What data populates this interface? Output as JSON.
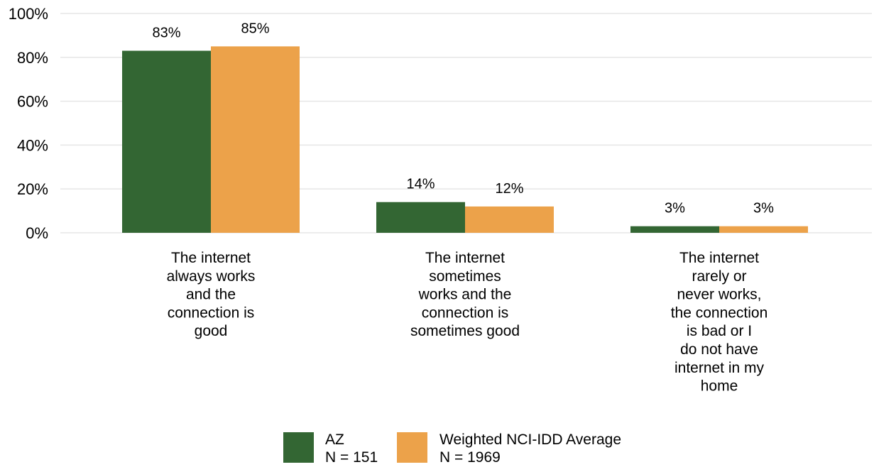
{
  "chart_data": {
    "type": "bar",
    "title": "",
    "xlabel": "",
    "ylabel": "",
    "ylim": [
      0,
      100
    ],
    "yticks": [
      "0%",
      "20%",
      "40%",
      "60%",
      "80%",
      "100%"
    ],
    "ytick_values": [
      0,
      20,
      40,
      60,
      80,
      100
    ],
    "grid": true,
    "legend_position": "bottom",
    "categories": [
      [
        "The internet",
        "always works",
        "and the",
        "connection is",
        "good"
      ],
      [
        "The internet",
        "sometimes",
        "works and the",
        "connection is",
        "sometimes good"
      ],
      [
        "The internet",
        "rarely or",
        "never works,",
        "the connection",
        "is bad or I",
        "do not have",
        "internet in my",
        "home"
      ]
    ],
    "series": [
      {
        "name": "AZ",
        "n_label": "N = 151",
        "color": "#336633",
        "values": [
          83,
          14,
          3
        ],
        "labels": [
          "83%",
          "14%",
          "3%"
        ]
      },
      {
        "name": "Weighted NCI-IDD Average",
        "n_label": "N = 1969",
        "color": "#eca24a",
        "values": [
          85,
          12,
          3
        ],
        "labels": [
          "85%",
          "12%",
          "3%"
        ]
      }
    ]
  }
}
